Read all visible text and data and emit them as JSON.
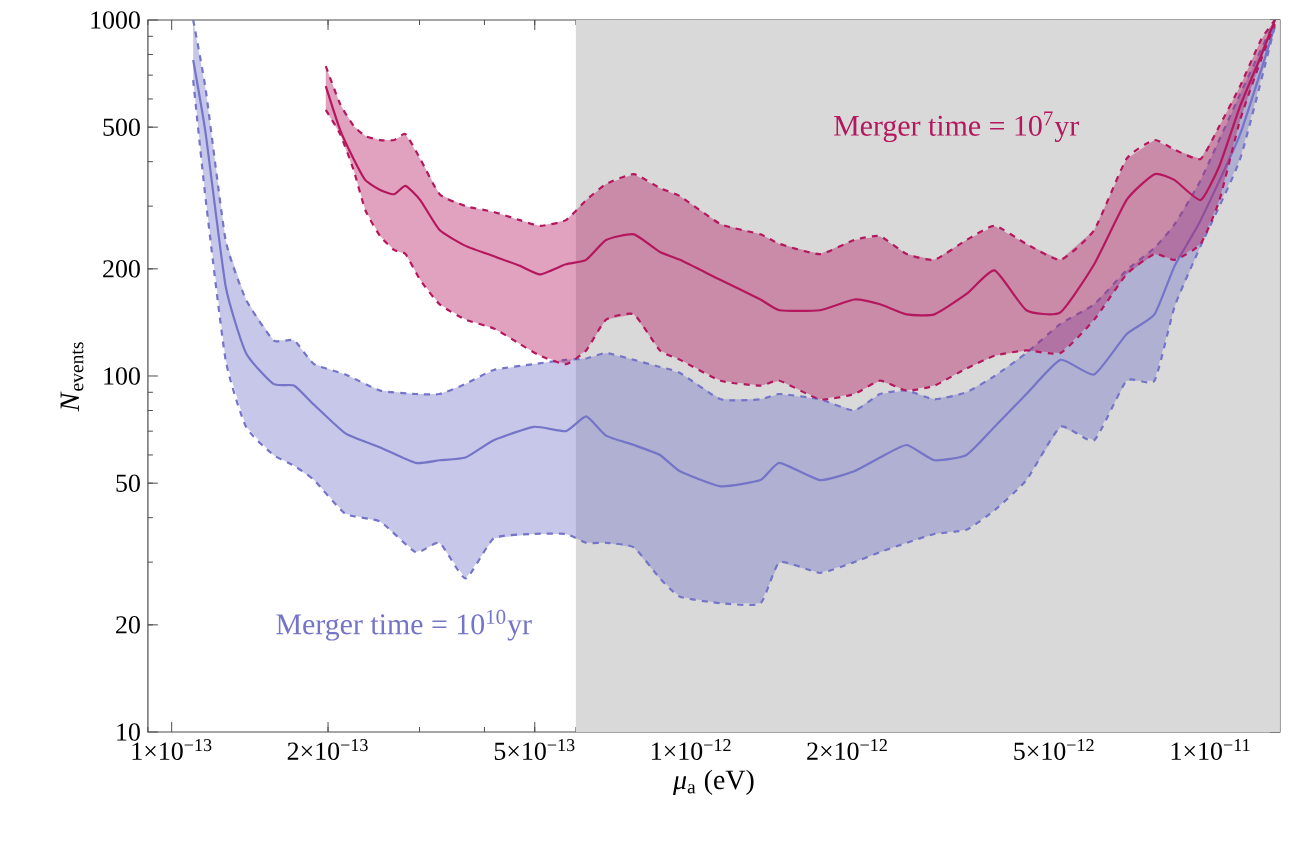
{
  "chart_data": {
    "type": "line",
    "xlabel": "*μ*$_{a}$ (eV)",
    "ylabel": "*N*$_{events}$",
    "log": "xy",
    "marker": "none",
    "xlim": [
      9e-14,
      1.36e-11
    ],
    "ylim": [
      10,
      1000
    ],
    "xticks": [
      {
        "value": 1e-13,
        "label": "1×10$^{−13}$"
      },
      {
        "value": 2e-13,
        "label": "2×10$^{−13}$"
      },
      {
        "value": 5e-13,
        "label": "5×10$^{−13}$"
      },
      {
        "value": 1e-12,
        "label": "1×10$^{−12}$"
      },
      {
        "value": 2e-12,
        "label": "2×10$^{−12}$"
      },
      {
        "value": 5e-12,
        "label": "5×10$^{−12}$"
      },
      {
        "value": 1e-11,
        "label": "1×10$^{−11}$"
      }
    ],
    "yticks": [
      10,
      20,
      50,
      100,
      200,
      500,
      1000
    ],
    "bands": [
      {
        "axis": "x",
        "from": 6e-13,
        "to": 1.36e-11,
        "color": "#d9d9d9"
      }
    ],
    "series": [
      {
        "name": "Merger time = 10$^{10}$yr",
        "color": "#7474c8",
        "line_style": "solid",
        "x": [
          1.1e-13,
          1.163e-13,
          1.27e-13,
          1.39e-13,
          1.57e-13,
          1.72e-13,
          1.88e-13,
          2.16e-13,
          2.52e-13,
          2.95e-13,
          3.28e-13,
          3.68e-13,
          4.17e-13,
          4.98e-13,
          5.74e-13,
          6.28e-13,
          6.86e-13,
          7.76e-13,
          8.71e-13,
          9.52e-13,
          1.14e-12,
          1.36e-12,
          1.48e-12,
          1.77e-12,
          2.06e-12,
          2.31e-12,
          2.6e-12,
          2.94e-12,
          3.39e-12,
          3.84e-12,
          4.42e-12,
          5.14e-12,
          5.97e-12,
          6.89e-12,
          7.8e-12,
          8.53e-12,
          9.57e-12,
          1.14e-11,
          1.33e-11
        ],
        "values": [
          772,
          478,
          179,
          116,
          95,
          94,
          83,
          69,
          63,
          57,
          58,
          59,
          66,
          72,
          70,
          77,
          68,
          64,
          60,
          54,
          49,
          51,
          57,
          51,
          54,
          59,
          64,
          58,
          60,
          72,
          89,
          111,
          101,
          131,
          149,
          204,
          274,
          478,
          962
        ],
        "lower": [
          678,
          312,
          111,
          72,
          60,
          56,
          51,
          41,
          39,
          32,
          34,
          27,
          35,
          36,
          36,
          34,
          34,
          33,
          27,
          24,
          23,
          23,
          30,
          28,
          30,
          32,
          34,
          36,
          37,
          42,
          51,
          72,
          66,
          97,
          97,
          157,
          232,
          407,
          962
        ],
        "upper": [
          1000,
          636,
          241,
          164,
          126,
          126,
          108,
          101,
          91,
          89,
          89,
          95,
          104,
          108,
          111,
          112,
          116,
          111,
          106,
          102,
          86,
          86,
          89,
          86,
          80,
          89,
          91,
          86,
          90,
          100,
          116,
          140,
          159,
          198,
          229,
          267,
          355,
          619,
          1000
        ]
      },
      {
        "color": "#7474c8",
        "line_style": "dashed",
        "x": [
          1.1e-13,
          1.163e-13,
          1.27e-13,
          1.39e-13,
          1.57e-13,
          1.72e-13,
          1.88e-13,
          2.16e-13,
          2.52e-13,
          2.95e-13,
          3.28e-13,
          3.68e-13,
          4.17e-13,
          4.98e-13,
          5.74e-13,
          6.28e-13,
          6.86e-13,
          7.76e-13,
          8.71e-13,
          9.52e-13,
          1.14e-12,
          1.36e-12,
          1.48e-12,
          1.77e-12,
          2.06e-12,
          2.31e-12,
          2.6e-12,
          2.94e-12,
          3.39e-12,
          3.84e-12,
          4.42e-12,
          5.14e-12,
          5.97e-12,
          6.89e-12,
          7.8e-12,
          8.53e-12,
          9.57e-12,
          1.14e-11,
          1.33e-11
        ],
        "values": [
          1000,
          636,
          241,
          164,
          126,
          126,
          108,
          101,
          91,
          89,
          89,
          95,
          104,
          108,
          111,
          112,
          116,
          111,
          106,
          102,
          86,
          86,
          89,
          86,
          80,
          89,
          91,
          86,
          90,
          100,
          116,
          140,
          159,
          198,
          229,
          267,
          355,
          619,
          1000
        ]
      },
      {
        "color": "#7474c8",
        "line_style": "dashed",
        "x": [
          1.1e-13,
          1.163e-13,
          1.27e-13,
          1.39e-13,
          1.57e-13,
          1.72e-13,
          1.88e-13,
          2.16e-13,
          2.52e-13,
          2.95e-13,
          3.28e-13,
          3.68e-13,
          4.17e-13,
          4.98e-13,
          5.74e-13,
          6.28e-13,
          6.86e-13,
          7.76e-13,
          8.71e-13,
          9.52e-13,
          1.14e-12,
          1.36e-12,
          1.48e-12,
          1.77e-12,
          2.06e-12,
          2.31e-12,
          2.6e-12,
          2.94e-12,
          3.39e-12,
          3.84e-12,
          4.42e-12,
          5.14e-12,
          5.97e-12,
          6.89e-12,
          7.8e-12,
          8.53e-12,
          9.57e-12,
          1.14e-11,
          1.33e-11
        ],
        "values": [
          678,
          312,
          111,
          72,
          60,
          56,
          51,
          41,
          39,
          32,
          34,
          27,
          35,
          36,
          36,
          34,
          34,
          33,
          27,
          24,
          23,
          23,
          30,
          28,
          30,
          32,
          34,
          36,
          37,
          42,
          51,
          72,
          66,
          97,
          97,
          157,
          232,
          407,
          962
        ]
      },
      {
        "name": "Merger time = 10$^{7}$yr",
        "color": "#b5175e",
        "line_style": "solid",
        "x": [
          1.98e-13,
          2.11e-13,
          2.24e-13,
          2.36e-13,
          2.52e-13,
          2.68e-13,
          2.82e-13,
          3.01e-13,
          3.28e-13,
          3.68e-13,
          4.17e-13,
          4.68e-13,
          5.12e-13,
          5.74e-13,
          6.28e-13,
          6.86e-13,
          7.76e-13,
          8.71e-13,
          9.52e-13,
          1.14e-12,
          1.36e-12,
          1.48e-12,
          1.77e-12,
          2.06e-12,
          2.31e-12,
          2.6e-12,
          2.94e-12,
          3.39e-12,
          3.84e-12,
          4.42e-12,
          5.14e-12,
          5.97e-12,
          6.89e-12,
          7.8e-12,
          8.53e-12,
          9.57e-12,
          1.04e-11,
          1.14e-11,
          1.25e-11,
          1.33e-11
        ],
        "values": [
          652,
          491,
          407,
          355,
          333,
          324,
          342,
          312,
          257,
          232,
          217,
          204,
          193,
          206,
          212,
          241,
          250,
          223,
          212,
          186,
          164,
          153,
          153,
          164,
          159,
          149,
          149,
          170,
          198,
          153,
          151,
          206,
          312,
          369,
          355,
          312,
          389,
          573,
          792,
          1000
        ],
        "lower": [
          559,
          478,
          379,
          292,
          247,
          226,
          220,
          186,
          159,
          144,
          136,
          123,
          114,
          108,
          118,
          144,
          149,
          118,
          111,
          97,
          94,
          97,
          86,
          89,
          97,
          91,
          94,
          105,
          114,
          118,
          116,
          144,
          193,
          220,
          212,
          235,
          312,
          524,
          772,
          974
        ],
        "upper": [
          742,
          581,
          504,
          472,
          460,
          460,
          478,
          407,
          324,
          300,
          289,
          274,
          264,
          274,
          312,
          346,
          369,
          337,
          320,
          267,
          250,
          235,
          220,
          241,
          247,
          220,
          212,
          241,
          264,
          235,
          212,
          257,
          407,
          460,
          432,
          407,
          504,
          652,
          879,
          1000
        ]
      },
      {
        "color": "#b5175e",
        "line_style": "dashed",
        "x": [
          1.98e-13,
          2.11e-13,
          2.24e-13,
          2.36e-13,
          2.52e-13,
          2.68e-13,
          2.82e-13,
          3.01e-13,
          3.28e-13,
          3.68e-13,
          4.17e-13,
          4.68e-13,
          5.12e-13,
          5.74e-13,
          6.28e-13,
          6.86e-13,
          7.76e-13,
          8.71e-13,
          9.52e-13,
          1.14e-12,
          1.36e-12,
          1.48e-12,
          1.77e-12,
          2.06e-12,
          2.31e-12,
          2.6e-12,
          2.94e-12,
          3.39e-12,
          3.84e-12,
          4.42e-12,
          5.14e-12,
          5.97e-12,
          6.89e-12,
          7.8e-12,
          8.53e-12,
          9.57e-12,
          1.04e-11,
          1.14e-11,
          1.25e-11,
          1.33e-11
        ],
        "values": [
          742,
          581,
          504,
          472,
          460,
          460,
          478,
          407,
          324,
          300,
          289,
          274,
          264,
          274,
          312,
          346,
          369,
          337,
          320,
          267,
          250,
          235,
          220,
          241,
          247,
          220,
          212,
          241,
          264,
          235,
          212,
          257,
          407,
          460,
          432,
          407,
          504,
          652,
          879,
          1000
        ]
      },
      {
        "color": "#b5175e",
        "line_style": "dashed",
        "x": [
          1.98e-13,
          2.11e-13,
          2.24e-13,
          2.36e-13,
          2.52e-13,
          2.68e-13,
          2.82e-13,
          3.01e-13,
          3.28e-13,
          3.68e-13,
          4.17e-13,
          4.68e-13,
          5.12e-13,
          5.74e-13,
          6.28e-13,
          6.86e-13,
          7.76e-13,
          8.71e-13,
          9.52e-13,
          1.14e-12,
          1.36e-12,
          1.48e-12,
          1.77e-12,
          2.06e-12,
          2.31e-12,
          2.6e-12,
          2.94e-12,
          3.39e-12,
          3.84e-12,
          4.42e-12,
          5.14e-12,
          5.97e-12,
          6.89e-12,
          7.8e-12,
          8.53e-12,
          9.57e-12,
          1.04e-11,
          1.14e-11,
          1.25e-11,
          1.33e-11
        ],
        "values": [
          559,
          478,
          379,
          292,
          247,
          226,
          220,
          186,
          159,
          144,
          136,
          123,
          114,
          108,
          118,
          144,
          149,
          118,
          111,
          97,
          94,
          97,
          86,
          89,
          97,
          91,
          94,
          105,
          114,
          118,
          116,
          144,
          193,
          220,
          212,
          235,
          312,
          524,
          772,
          974
        ]
      }
    ]
  }
}
